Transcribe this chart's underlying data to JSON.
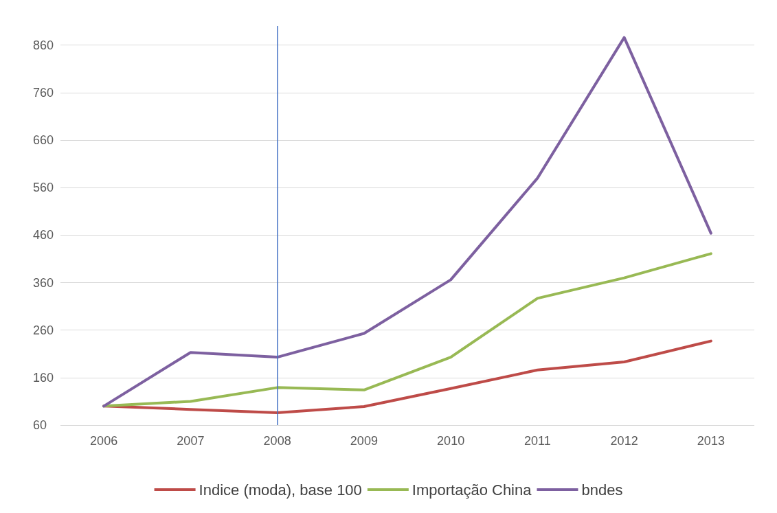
{
  "chart_data": {
    "type": "line",
    "categories": [
      "2006",
      "2007",
      "2008",
      "2009",
      "2010",
      "2011",
      "2012",
      "2013"
    ],
    "series": [
      {
        "name": "Indice (moda), base 100",
        "color": "#be4b48",
        "values": [
          100,
          93,
          86,
          99,
          137,
          176,
          193,
          237
        ]
      },
      {
        "name": "Importação China",
        "color": "#98b954",
        "values": [
          100,
          110,
          139,
          134,
          203,
          327,
          370,
          421
        ]
      },
      {
        "name": "bndes",
        "color": "#7d60a0",
        "values": [
          100,
          213,
          203,
          253,
          366,
          580,
          876,
          464
        ]
      }
    ],
    "ylim": [
      60,
      900
    ],
    "yticks": [
      60,
      160,
      260,
      360,
      460,
      560,
      660,
      760,
      860
    ],
    "grid": "y",
    "legend": "bottom",
    "marker": "none",
    "line_style": "solid",
    "ref_lines": [
      {
        "axis": "x",
        "value": "2008",
        "color": "#4472c4"
      }
    ]
  }
}
